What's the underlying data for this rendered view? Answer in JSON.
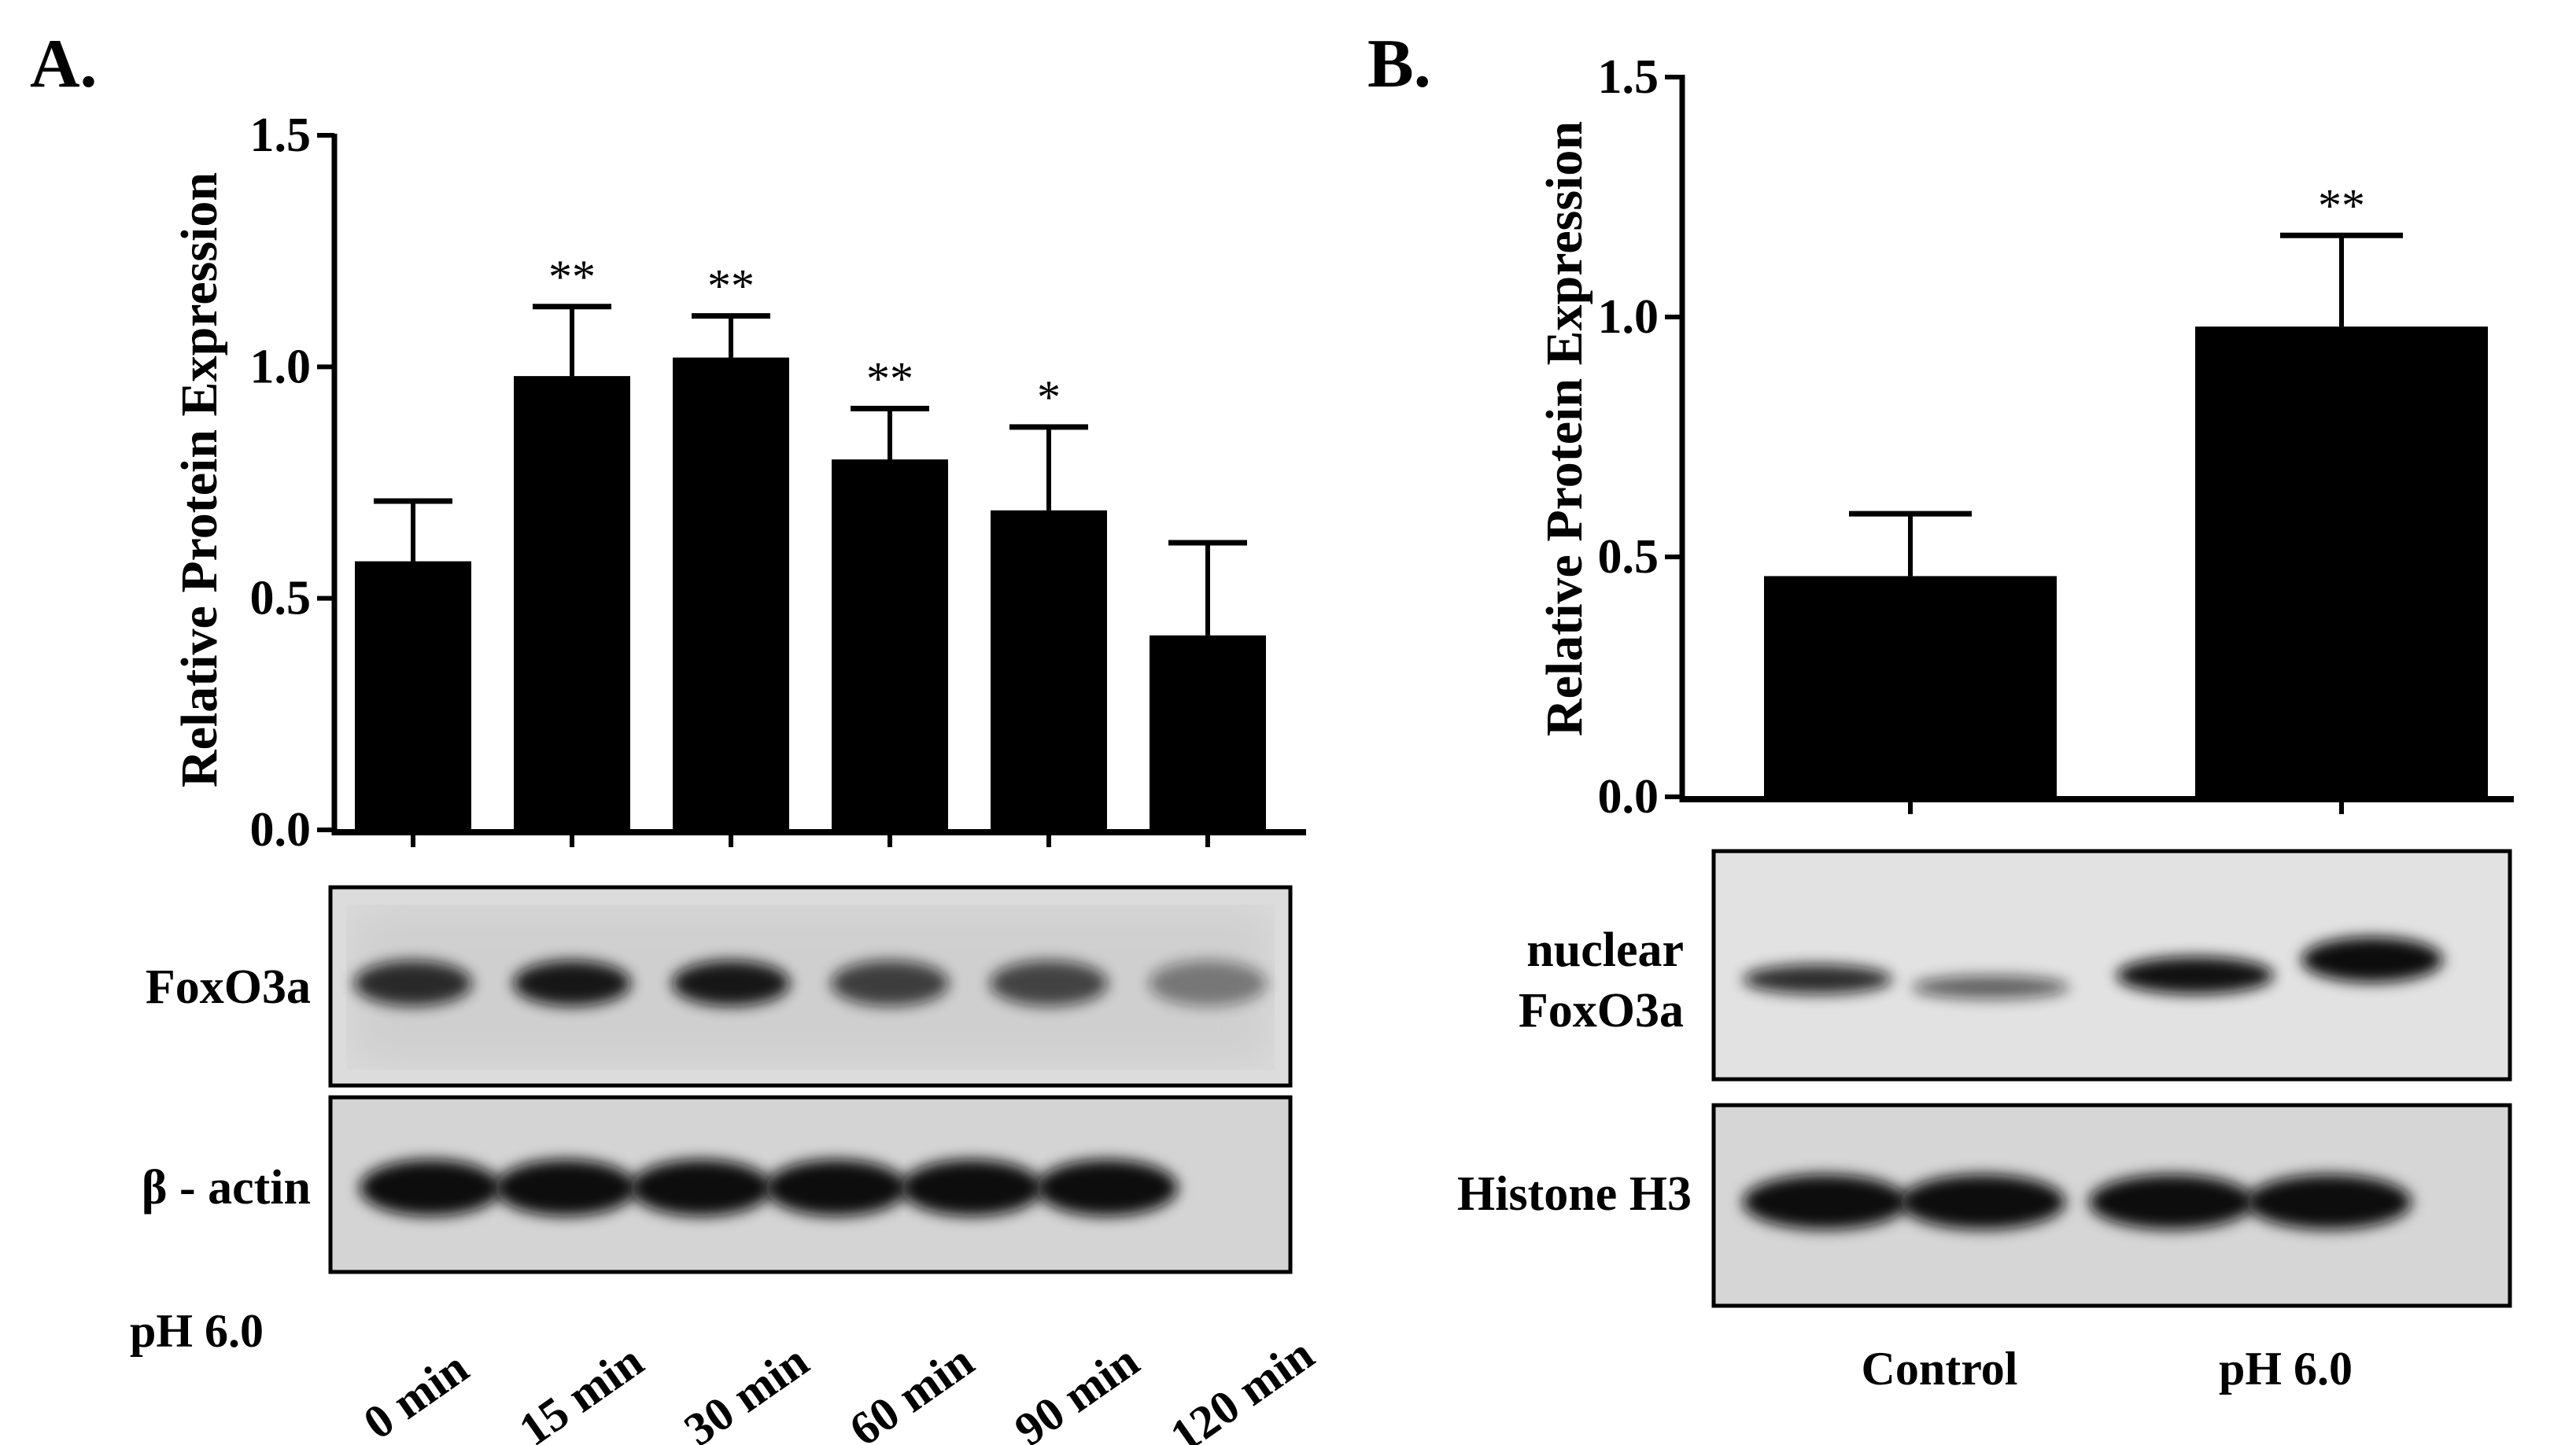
{
  "chart_data": [
    {
      "panel": "A.",
      "type": "bar",
      "ylabel": "Relative Protein Expression",
      "ylim": [
        0,
        1.5
      ],
      "yticks": [
        "0.0",
        "0.5",
        "1.0",
        "1.5"
      ],
      "categories": [
        "0 min",
        "15 min",
        "30 min",
        "60 min",
        "90 min",
        "120 min"
      ],
      "values": [
        0.58,
        0.98,
        1.02,
        0.8,
        0.69,
        0.42
      ],
      "errors": [
        0.13,
        0.15,
        0.09,
        0.11,
        0.18,
        0.2
      ],
      "significance": [
        "",
        "**",
        "**",
        "**",
        "*",
        ""
      ],
      "treatment_label": "pH 6.0",
      "blots": [
        "FoxO3a",
        "β - actin"
      ]
    },
    {
      "panel": "B.",
      "type": "bar",
      "ylabel": "Relative Protein Expression",
      "ylim": [
        0,
        1.5
      ],
      "yticks": [
        "0.0",
        "0.5",
        "1.0",
        "1.5"
      ],
      "categories": [
        "Control",
        "pH 6.0"
      ],
      "values": [
        0.46,
        0.98
      ],
      "errors": [
        0.13,
        0.19
      ],
      "significance": [
        "",
        "**"
      ],
      "blots": [
        [
          "nuclear",
          "FoxO3a"
        ],
        "Histone H3"
      ]
    }
  ]
}
